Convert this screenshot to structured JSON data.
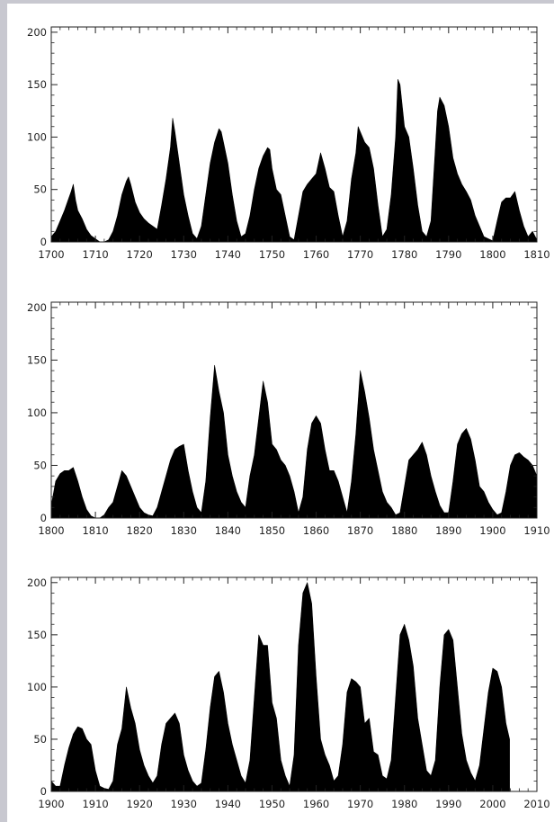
{
  "chart_data": [
    {
      "type": "area",
      "title": "",
      "xlabel": "",
      "ylabel": "",
      "xlim": [
        1700,
        1810
      ],
      "ylim": [
        0,
        205
      ],
      "x_ticks": [
        1700,
        1710,
        1720,
        1730,
        1740,
        1750,
        1760,
        1770,
        1780,
        1790,
        1800,
        1810
      ],
      "y_ticks": [
        0,
        50,
        100,
        150,
        200
      ],
      "fill_color": "#000000",
      "series": [
        {
          "x": [
            1700,
            1701,
            1702,
            1703,
            1704,
            1704.5,
            1705,
            1705.5,
            1706,
            1707,
            1708,
            1709,
            1710,
            1711,
            1712,
            1713,
            1714,
            1715,
            1716,
            1717,
            1717.5,
            1718,
            1719,
            1720,
            1721,
            1722,
            1723,
            1724,
            1725,
            1726,
            1727,
            1727.5,
            1728,
            1729,
            1730,
            1731,
            1732,
            1733,
            1734,
            1735,
            1736,
            1737,
            1738,
            1738.5,
            1739,
            1740,
            1741,
            1742,
            1743,
            1744,
            1745,
            1746,
            1747,
            1748,
            1749,
            1749.5,
            1750,
            1751,
            1752,
            1753,
            1754,
            1755,
            1756,
            1757,
            1758,
            1759,
            1760,
            1761,
            1762,
            1763,
            1764,
            1765,
            1766,
            1767,
            1768,
            1769,
            1769.5,
            1770,
            1771,
            1772,
            1773,
            1774,
            1775,
            1776,
            1777,
            1778,
            1778.5,
            1779,
            1780,
            1781,
            1782,
            1783,
            1784,
            1785,
            1786,
            1787,
            1787.5,
            1788,
            1789,
            1790,
            1791,
            1792,
            1793,
            1794,
            1795,
            1796,
            1797,
            1798,
            1799,
            1800,
            1801,
            1802,
            1803,
            1804,
            1804.5,
            1805,
            1806,
            1807,
            1808,
            1809,
            1810
          ],
          "y": [
            5,
            10,
            20,
            30,
            42,
            48,
            55,
            40,
            30,
            22,
            12,
            6,
            3,
            0,
            0,
            2,
            10,
            25,
            45,
            58,
            62,
            55,
            38,
            28,
            22,
            18,
            15,
            12,
            35,
            60,
            90,
            118,
            105,
            75,
            45,
            25,
            8,
            3,
            15,
            45,
            75,
            95,
            108,
            105,
            95,
            75,
            45,
            20,
            5,
            8,
            25,
            50,
            70,
            82,
            90,
            88,
            70,
            50,
            45,
            25,
            5,
            2,
            25,
            48,
            55,
            60,
            65,
            85,
            70,
            52,
            48,
            25,
            5,
            20,
            60,
            85,
            110,
            105,
            95,
            90,
            70,
            35,
            5,
            12,
            45,
            100,
            155,
            150,
            110,
            100,
            70,
            35,
            10,
            5,
            20,
            90,
            125,
            138,
            130,
            110,
            80,
            65,
            55,
            48,
            40,
            25,
            15,
            5,
            3,
            1,
            20,
            38,
            42,
            42,
            45,
            48,
            30,
            15,
            5,
            10,
            2
          ]
        }
      ]
    },
    {
      "type": "area",
      "title": "",
      "xlabel": "",
      "ylabel": "",
      "xlim": [
        1800,
        1910
      ],
      "ylim": [
        0,
        205
      ],
      "x_ticks": [
        1800,
        1810,
        1820,
        1830,
        1840,
        1850,
        1860,
        1870,
        1880,
        1890,
        1900,
        1910
      ],
      "y_ticks": [
        0,
        50,
        100,
        150,
        200
      ],
      "fill_color": "#000000",
      "series": [
        {
          "x": [
            1800,
            1801,
            1802,
            1803,
            1804,
            1805,
            1806,
            1807,
            1808,
            1809,
            1810,
            1811,
            1812,
            1813,
            1814,
            1815,
            1816,
            1817,
            1818,
            1819,
            1820,
            1821,
            1822,
            1823,
            1824,
            1825,
            1826,
            1827,
            1828,
            1829,
            1830,
            1831,
            1832,
            1833,
            1834,
            1835,
            1836,
            1837,
            1838,
            1839,
            1840,
            1841,
            1842,
            1843,
            1844,
            1845,
            1846,
            1847,
            1848,
            1849,
            1850,
            1851,
            1852,
            1853,
            1854,
            1855,
            1856,
            1857,
            1858,
            1859,
            1860,
            1861,
            1862,
            1863,
            1864,
            1865,
            1866,
            1867,
            1868,
            1869,
            1870,
            1871,
            1872,
            1873,
            1874,
            1875,
            1876,
            1877,
            1878,
            1879,
            1880,
            1881,
            1882,
            1883,
            1884,
            1885,
            1886,
            1887,
            1888,
            1889,
            1890,
            1891,
            1892,
            1893,
            1894,
            1895,
            1896,
            1897,
            1898,
            1899,
            1900,
            1901,
            1902,
            1903,
            1904,
            1905,
            1906,
            1907,
            1908,
            1909,
            1910
          ],
          "y": [
            12,
            35,
            42,
            45,
            45,
            48,
            35,
            20,
            8,
            2,
            0,
            0,
            3,
            10,
            15,
            30,
            45,
            40,
            30,
            20,
            10,
            5,
            3,
            2,
            10,
            25,
            40,
            55,
            65,
            68,
            70,
            45,
            25,
            10,
            5,
            35,
            95,
            145,
            120,
            100,
            60,
            40,
            25,
            15,
            10,
            40,
            60,
            95,
            130,
            110,
            70,
            65,
            55,
            50,
            40,
            25,
            5,
            20,
            65,
            90,
            97,
            90,
            65,
            45,
            45,
            35,
            20,
            5,
            35,
            80,
            140,
            120,
            95,
            65,
            45,
            25,
            15,
            10,
            3,
            5,
            30,
            55,
            60,
            65,
            72,
            60,
            40,
            25,
            12,
            5,
            5,
            35,
            70,
            80,
            85,
            75,
            55,
            30,
            25,
            15,
            8,
            3,
            5,
            25,
            50,
            60,
            62,
            58,
            55,
            50,
            40
          ]
        }
      ]
    },
    {
      "type": "area",
      "title": "",
      "xlabel": "",
      "ylabel": "",
      "xlim": [
        1900,
        2010
      ],
      "ylim": [
        0,
        205
      ],
      "x_ticks": [
        1900,
        1910,
        1920,
        1930,
        1940,
        1950,
        1960,
        1970,
        1980,
        1990,
        2000,
        2010
      ],
      "y_ticks": [
        0,
        50,
        100,
        150,
        200
      ],
      "fill_color": "#000000",
      "series": [
        {
          "x": [
            1900,
            1901,
            1902,
            1903,
            1904,
            1905,
            1906,
            1907,
            1908,
            1909,
            1910,
            1911,
            1912,
            1913,
            1914,
            1915,
            1916,
            1917,
            1918,
            1919,
            1920,
            1921,
            1922,
            1923,
            1924,
            1925,
            1926,
            1927,
            1928,
            1929,
            1930,
            1931,
            1932,
            1933,
            1934,
            1935,
            1936,
            1937,
            1938,
            1939,
            1940,
            1941,
            1942,
            1943,
            1944,
            1945,
            1946,
            1947,
            1948,
            1949,
            1950,
            1951,
            1952,
            1953,
            1954,
            1955,
            1956,
            1957,
            1958,
            1959,
            1960,
            1961,
            1962,
            1963,
            1964,
            1965,
            1966,
            1967,
            1968,
            1969,
            1970,
            1971,
            1972,
            1973,
            1974,
            1975,
            1976,
            1977,
            1978,
            1979,
            1980,
            1981,
            1982,
            1983,
            1984,
            1985,
            1986,
            1987,
            1988,
            1989,
            1990,
            1991,
            1992,
            1993,
            1994,
            1995,
            1996,
            1997,
            1998,
            1999,
            2000,
            2001,
            2002,
            2003,
            2003.8
          ],
          "y": [
            10,
            5,
            5,
            25,
            42,
            55,
            62,
            60,
            50,
            45,
            20,
            5,
            3,
            2,
            10,
            45,
            60,
            100,
            80,
            65,
            40,
            25,
            15,
            8,
            15,
            45,
            65,
            70,
            75,
            65,
            35,
            20,
            10,
            5,
            8,
            40,
            80,
            110,
            115,
            95,
            65,
            45,
            30,
            15,
            8,
            30,
            90,
            150,
            140,
            140,
            85,
            70,
            30,
            15,
            5,
            35,
            140,
            190,
            200,
            180,
            110,
            50,
            35,
            25,
            10,
            15,
            45,
            95,
            108,
            105,
            100,
            65,
            70,
            38,
            35,
            15,
            12,
            30,
            90,
            150,
            160,
            145,
            120,
            70,
            45,
            20,
            15,
            30,
            100,
            150,
            155,
            145,
            100,
            55,
            30,
            18,
            10,
            25,
            60,
            95,
            118,
            115,
            100,
            65,
            50
          ]
        }
      ]
    }
  ]
}
